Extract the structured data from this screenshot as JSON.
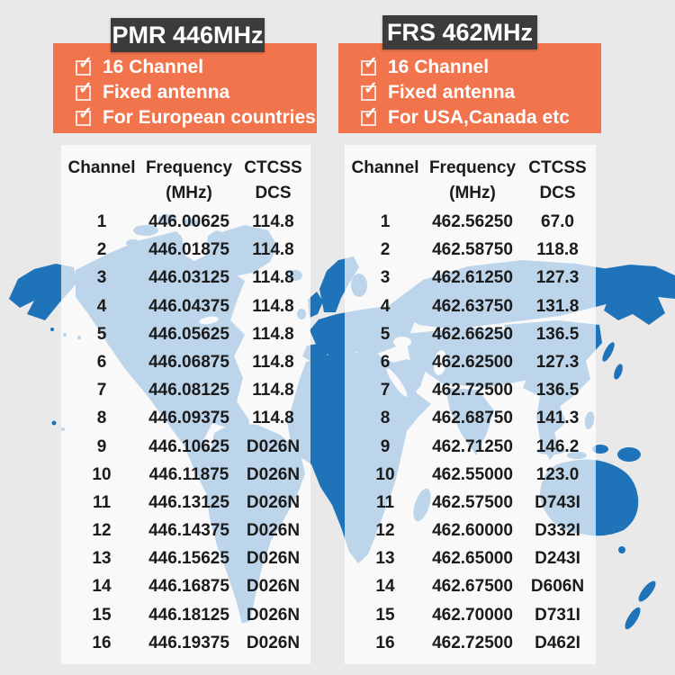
{
  "colors": {
    "background": "#e9e9e9",
    "map_blue": "#1e73b9",
    "orange_panel": "#f2744d",
    "title_bar_bg": "#3c3c3c",
    "title_text": "#ffffff",
    "table_panel_overlay": "rgba(255,255,255,0.70)",
    "table_text": "#1b1b1b",
    "feature_text": "#ffffff"
  },
  "icons": {
    "feature_bullet": "checked-checkbox-icon",
    "background_art": "world-map"
  },
  "columns": [
    {
      "id": "pmr",
      "title": "PMR 446MHz",
      "features": [
        "16 Channel",
        "Fixed antenna",
        "For European countries"
      ],
      "table": {
        "headers": {
          "channel": "Channel",
          "frequency": "Frequency",
          "frequency_unit": "(MHz)",
          "ctcss": "CTCSS",
          "ctcss_sub": "DCS"
        },
        "rows": [
          [
            "1",
            "446.00625",
            "114.8"
          ],
          [
            "2",
            "446.01875",
            "114.8"
          ],
          [
            "3",
            "446.03125",
            "114.8"
          ],
          [
            "4",
            "446.04375",
            "114.8"
          ],
          [
            "5",
            "446.05625",
            "114.8"
          ],
          [
            "6",
            "446.06875",
            "114.8"
          ],
          [
            "7",
            "446.08125",
            "114.8"
          ],
          [
            "8",
            "446.09375",
            "114.8"
          ],
          [
            "9",
            "446.10625",
            "D026N"
          ],
          [
            "10",
            "446.11875",
            "D026N"
          ],
          [
            "11",
            "446.13125",
            "D026N"
          ],
          [
            "12",
            "446.14375",
            "D026N"
          ],
          [
            "13",
            "446.15625",
            "D026N"
          ],
          [
            "14",
            "446.16875",
            "D026N"
          ],
          [
            "15",
            "446.18125",
            "D026N"
          ],
          [
            "16",
            "446.19375",
            "D026N"
          ]
        ]
      }
    },
    {
      "id": "frs",
      "title": "FRS 462MHz",
      "features": [
        "16 Channel",
        "Fixed antenna",
        "For USA,Canada etc"
      ],
      "table": {
        "headers": {
          "channel": "Channel",
          "frequency": "Frequency",
          "frequency_unit": "(MHz)",
          "ctcss": "CTCSS",
          "ctcss_sub": "DCS"
        },
        "rows": [
          [
            "1",
            "462.56250",
            "67.0"
          ],
          [
            "2",
            "462.58750",
            "118.8"
          ],
          [
            "3",
            "462.61250",
            "127.3"
          ],
          [
            "4",
            "462.63750",
            "131.8"
          ],
          [
            "5",
            "462.66250",
            "136.5"
          ],
          [
            "6",
            "462.62500",
            "127.3"
          ],
          [
            "7",
            "462.72500",
            "136.5"
          ],
          [
            "8",
            "462.68750",
            "141.3"
          ],
          [
            "9",
            "462.71250",
            "146.2"
          ],
          [
            "10",
            "462.55000",
            "123.0"
          ],
          [
            "11",
            "462.57500",
            "D743I"
          ],
          [
            "12",
            "462.60000",
            "D332I"
          ],
          [
            "13",
            "462.65000",
            "D243I"
          ],
          [
            "14",
            "462.67500",
            "D606N"
          ],
          [
            "15",
            "462.70000",
            "D731I"
          ],
          [
            "16",
            "462.72500",
            "D462I"
          ]
        ]
      }
    }
  ]
}
